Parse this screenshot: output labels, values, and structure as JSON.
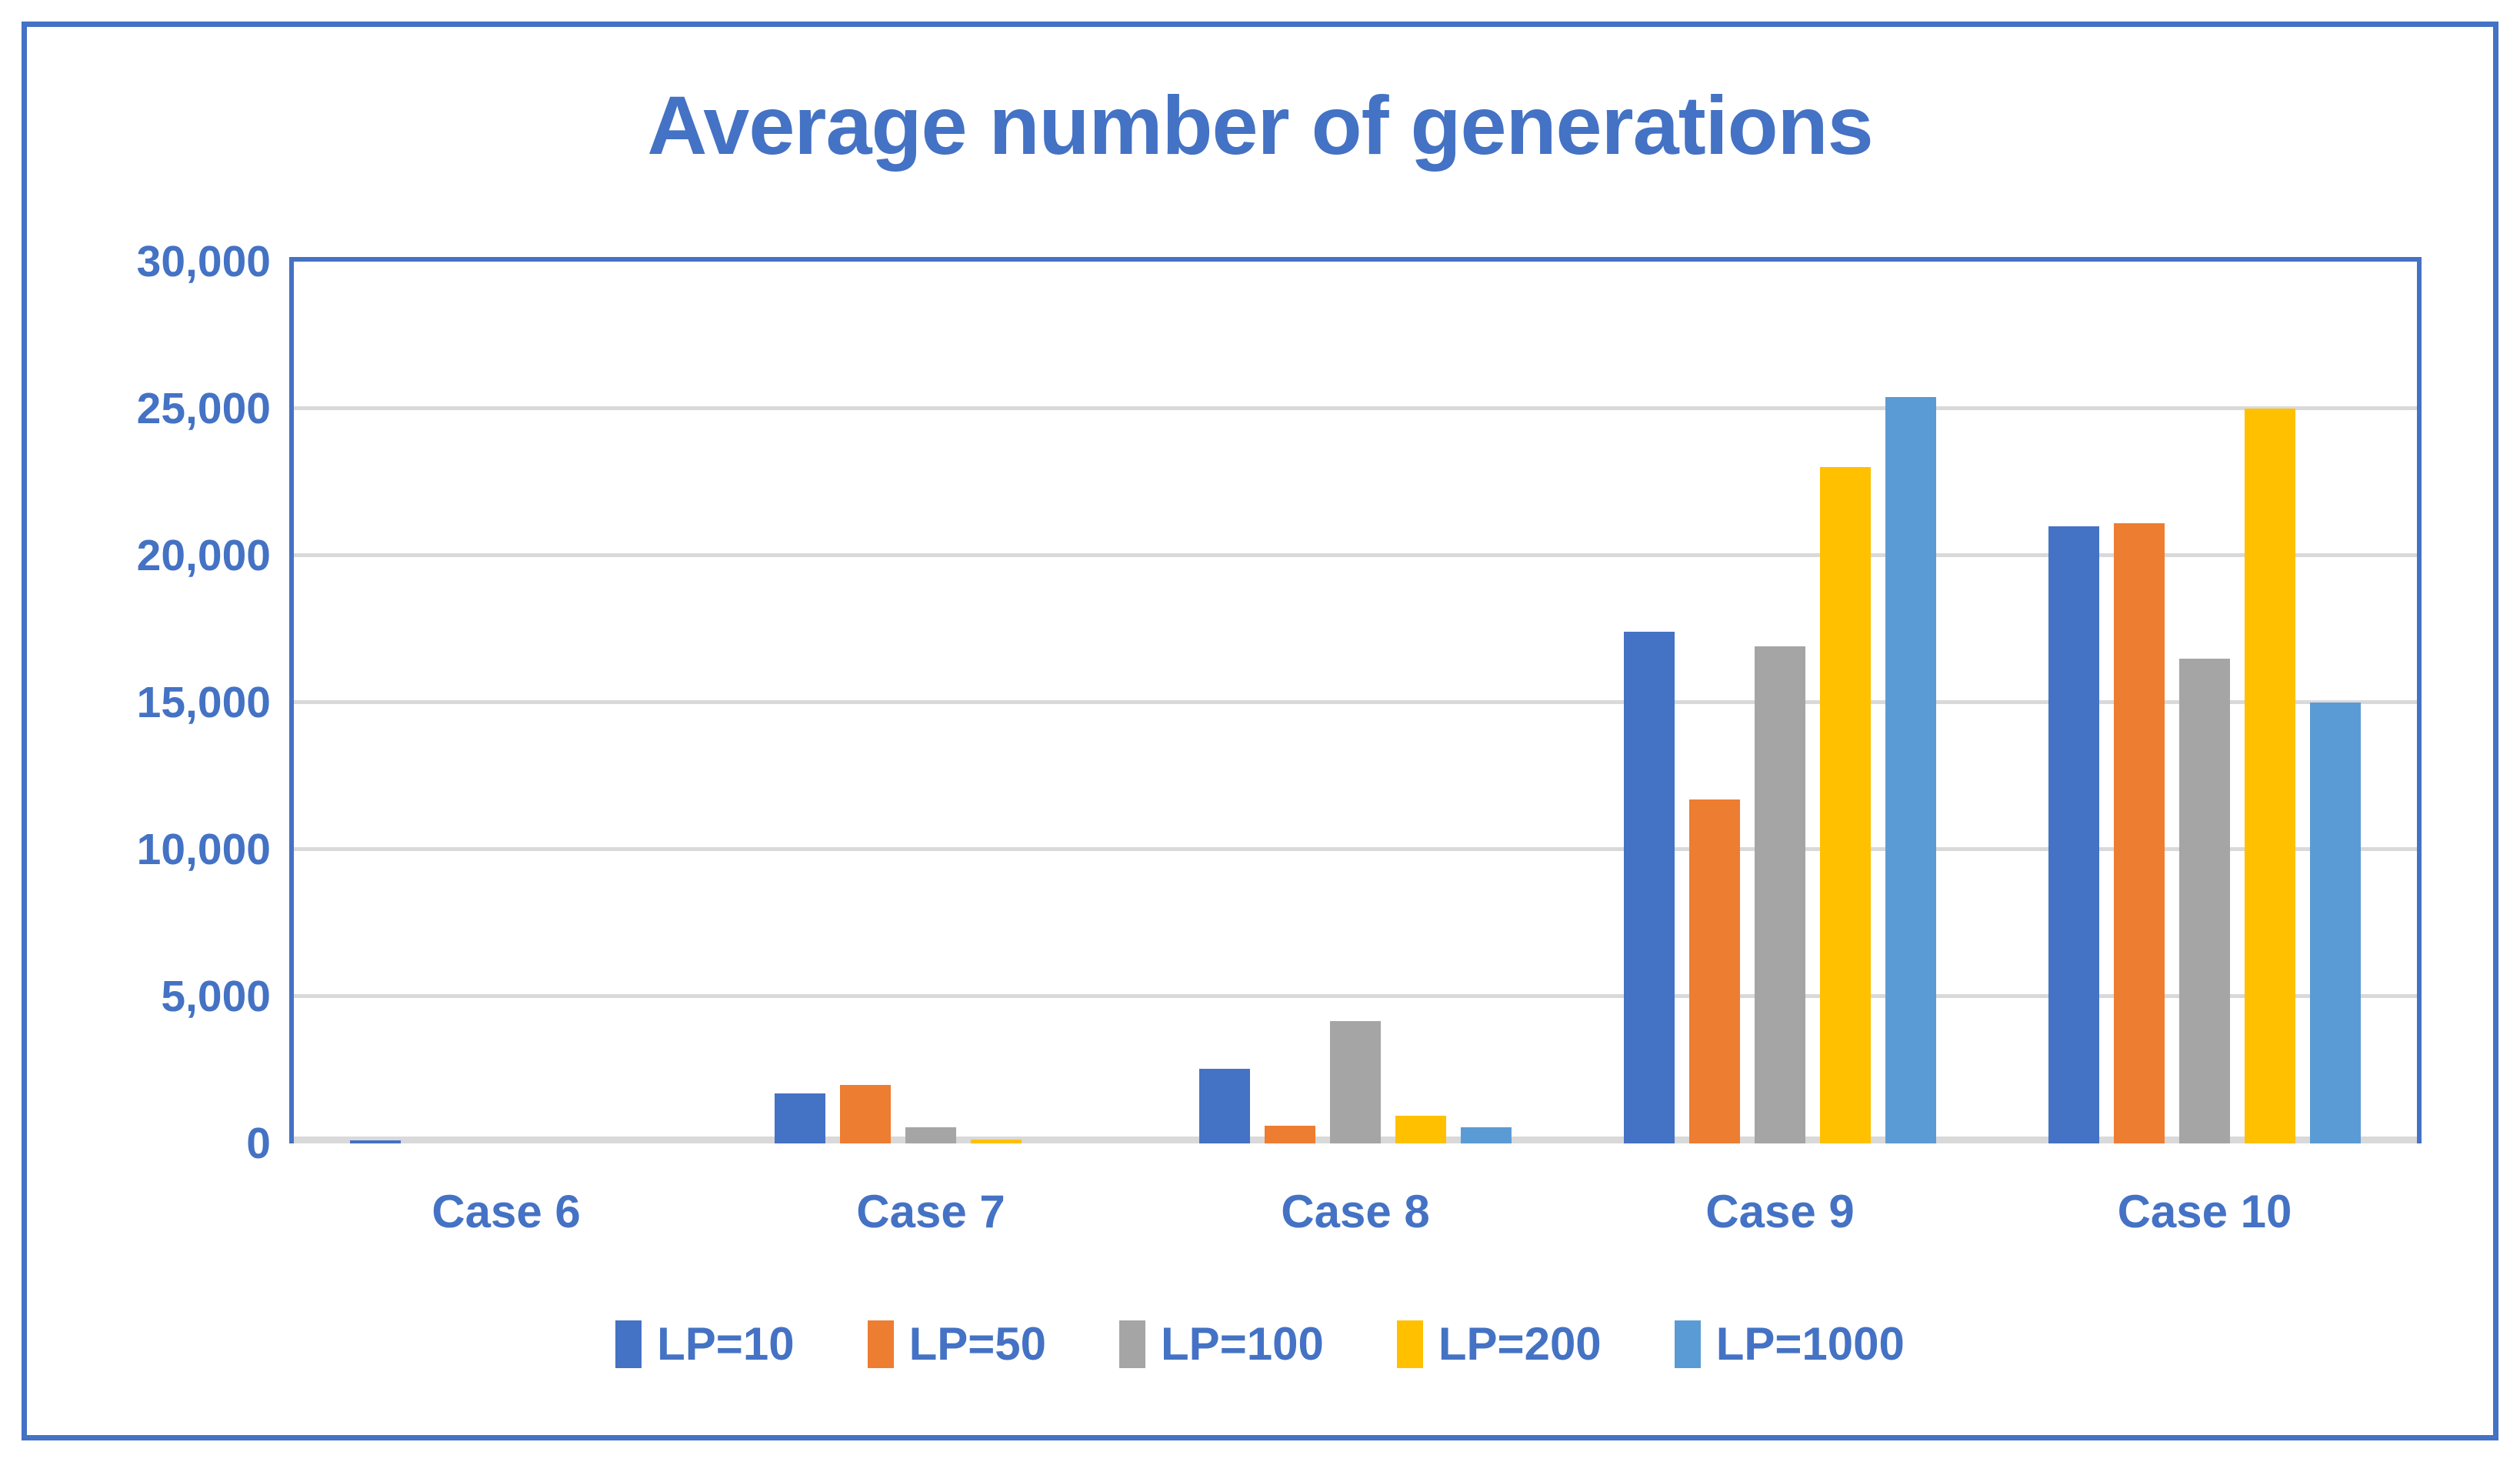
{
  "title": "Average number of generations",
  "colors": {
    "accent": "#4472C4",
    "gridline": "#D9D9D9",
    "axis_line": "#D9D9D9",
    "plot_frame": "#4472C4",
    "outer_border": "#4472C4",
    "text": "#4472C4"
  },
  "chart_data": {
    "type": "bar",
    "title": "Average number of generations",
    "categories": [
      "Case 6",
      "Case 7",
      "Case 8",
      "Case 9",
      "Case 10"
    ],
    "series": [
      {
        "name": "LP=10",
        "color": "#4472C4",
        "values": [
          100,
          1700,
          2550,
          17400,
          21000
        ]
      },
      {
        "name": "LP=50",
        "color": "#ED7D31",
        "values": [
          0,
          2000,
          600,
          11700,
          21100
        ]
      },
      {
        "name": "LP=100",
        "color": "#A5A5A5",
        "values": [
          0,
          550,
          4150,
          16900,
          16500
        ]
      },
      {
        "name": "LP=200",
        "color": "#FFC000",
        "values": [
          0,
          120,
          950,
          23000,
          25000
        ]
      },
      {
        "name": "LP=1000",
        "color": "#5B9BD5",
        "values": [
          0,
          0,
          550,
          25400,
          15000
        ]
      }
    ],
    "ylim": [
      0,
      30000
    ],
    "y_tick_step": 5000,
    "y_ticks": [
      {
        "value": 0,
        "label": "0"
      },
      {
        "value": 5000,
        "label": "5,000"
      },
      {
        "value": 10000,
        "label": "10,000"
      },
      {
        "value": 15000,
        "label": "15,000"
      },
      {
        "value": 20000,
        "label": "20,000"
      },
      {
        "value": 25000,
        "label": "25,000"
      },
      {
        "value": 30000,
        "label": "30,000"
      }
    ],
    "grid": true,
    "legend_position": "bottom"
  }
}
